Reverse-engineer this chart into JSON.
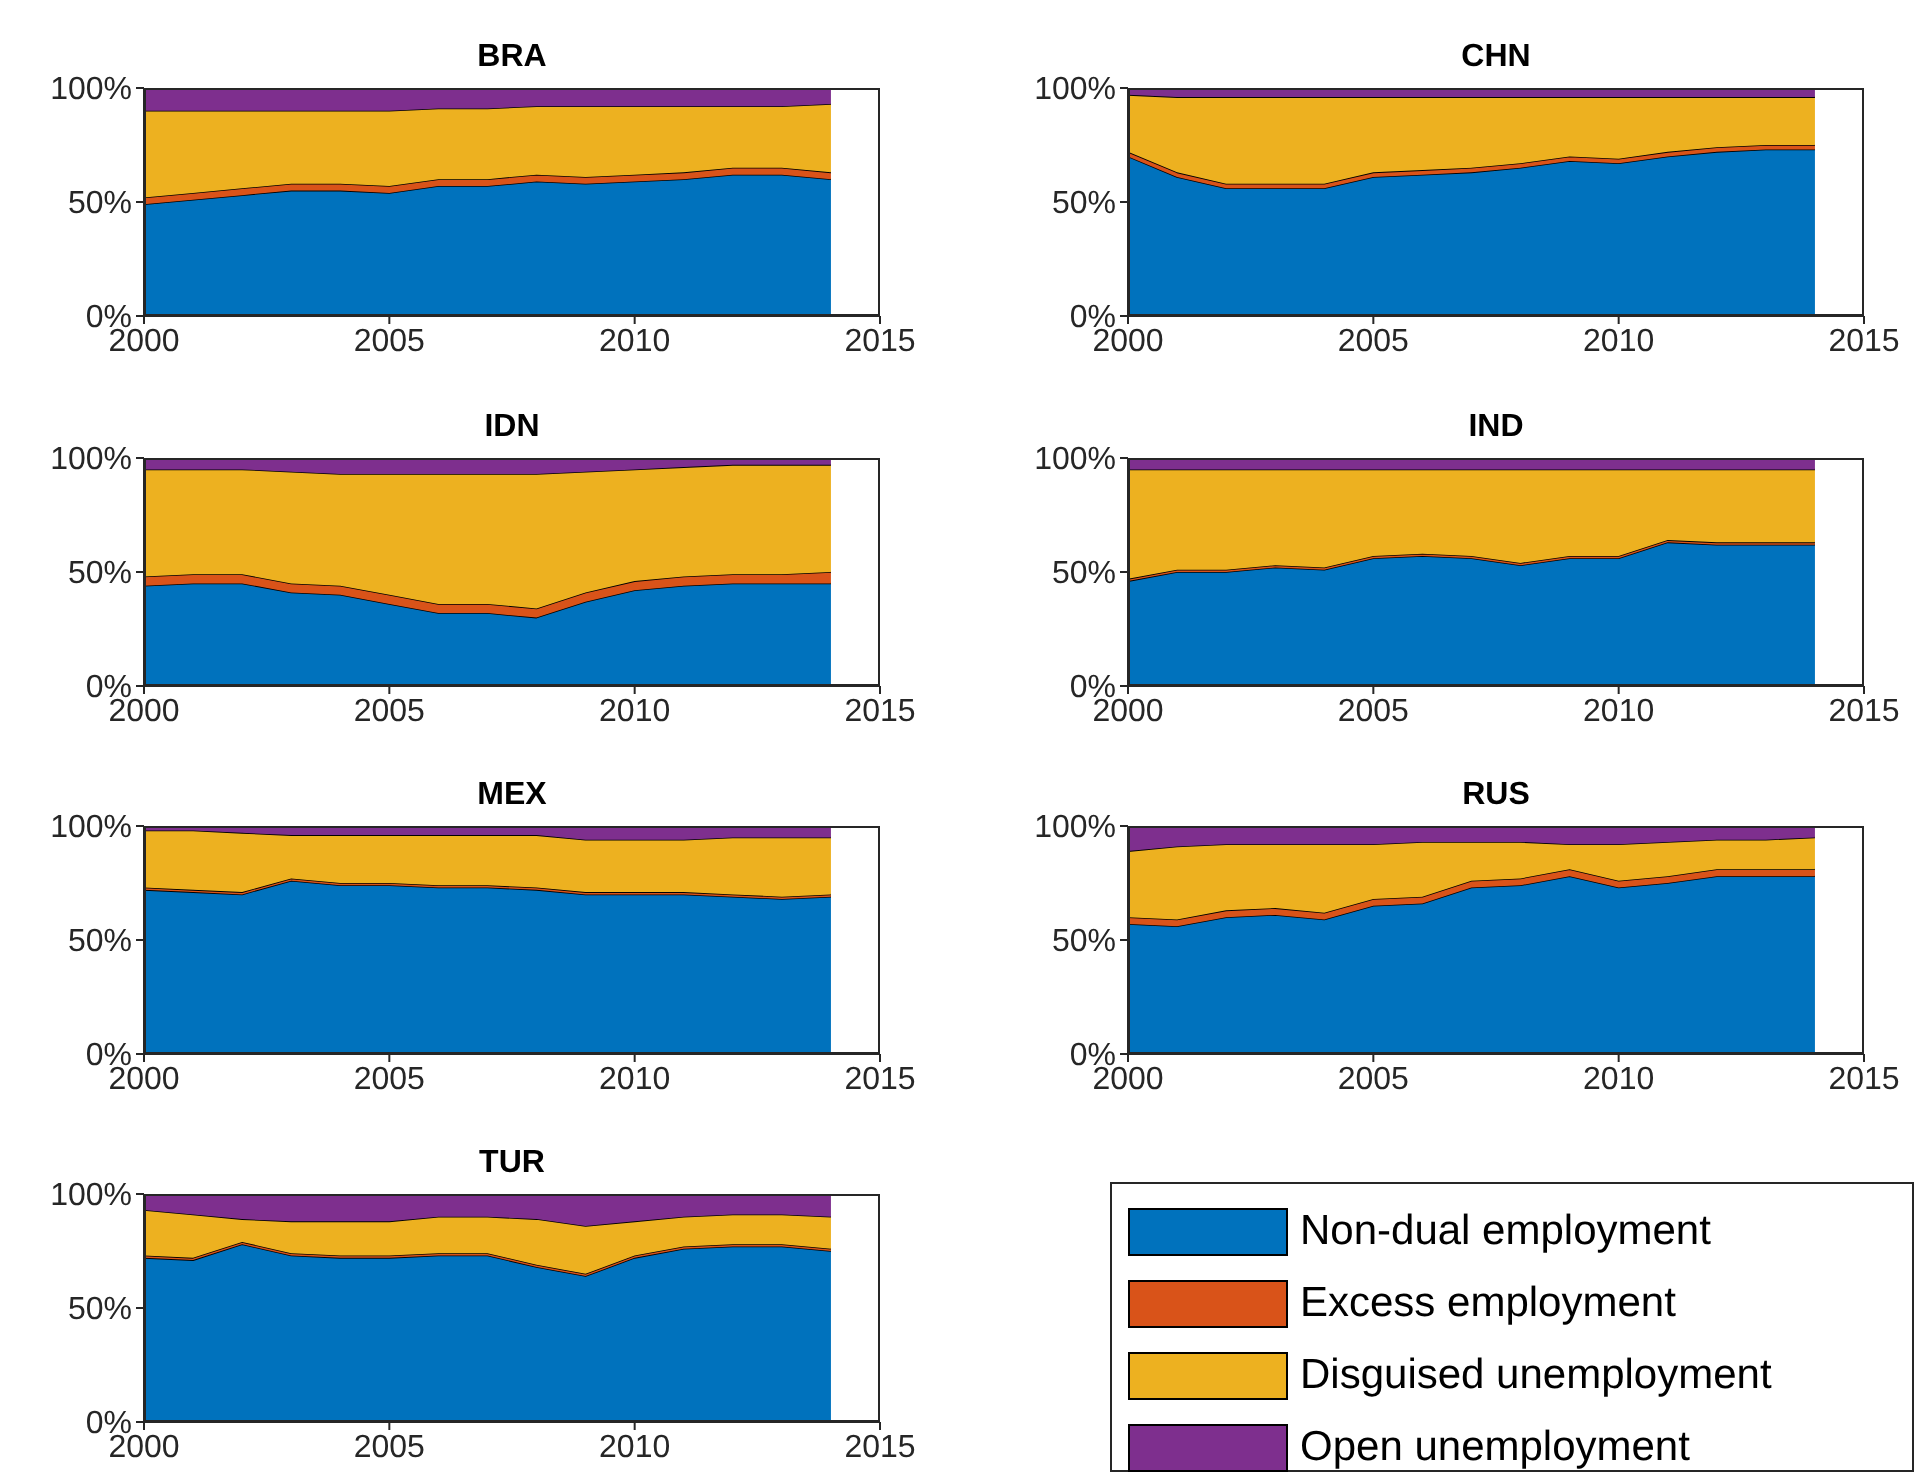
{
  "chart_data": [
    {
      "type": "area",
      "stacked": true,
      "title": "BRA",
      "x": [
        2000,
        2001,
        2002,
        2003,
        2004,
        2005,
        2006,
        2007,
        2008,
        2009,
        2010,
        2011,
        2012,
        2013,
        2014
      ],
      "xlim": [
        2000,
        2015
      ],
      "xticks": [
        2000,
        2005,
        2010,
        2015
      ],
      "ylim": [
        0,
        100
      ],
      "yticks": [
        {
          "value": 0,
          "label": "0%"
        },
        {
          "value": 50,
          "label": "50%"
        },
        {
          "value": 100,
          "label": "100%"
        }
      ],
      "series": [
        {
          "color": "#0072bd",
          "values": [
            49,
            51,
            53,
            55,
            55,
            54,
            57,
            57,
            59,
            58,
            59,
            60,
            62,
            62,
            60
          ]
        },
        {
          "color": "#d95319",
          "values": [
            3,
            3,
            3,
            3,
            3,
            3,
            3,
            3,
            3,
            3,
            3,
            3,
            3,
            3,
            3
          ]
        },
        {
          "color": "#edb120",
          "values": [
            38,
            36,
            34,
            32,
            32,
            33,
            31,
            31,
            30,
            31,
            30,
            29,
            27,
            27,
            30
          ]
        },
        {
          "color": "#7e2f8e",
          "values": [
            10,
            10,
            10,
            10,
            10,
            10,
            9,
            9,
            8,
            8,
            8,
            8,
            8,
            8,
            7
          ]
        }
      ]
    },
    {
      "type": "area",
      "stacked": true,
      "title": "CHN",
      "x": [
        2000,
        2001,
        2002,
        2003,
        2004,
        2005,
        2006,
        2007,
        2008,
        2009,
        2010,
        2011,
        2012,
        2013,
        2014
      ],
      "xlim": [
        2000,
        2015
      ],
      "xticks": [
        2000,
        2005,
        2010,
        2015
      ],
      "ylim": [
        0,
        100
      ],
      "yticks": [
        {
          "value": 0,
          "label": "0%"
        },
        {
          "value": 50,
          "label": "50%"
        },
        {
          "value": 100,
          "label": "100%"
        }
      ],
      "series": [
        {
          "color": "#0072bd",
          "values": [
            70,
            61,
            56,
            56,
            56,
            61,
            62,
            63,
            65,
            68,
            67,
            70,
            72,
            73,
            73
          ]
        },
        {
          "color": "#d95319",
          "values": [
            2,
            2,
            2,
            2,
            2,
            2,
            2,
            2,
            2,
            2,
            2,
            2,
            2,
            2,
            2
          ]
        },
        {
          "color": "#edb120",
          "values": [
            25,
            33,
            38,
            38,
            38,
            33,
            32,
            31,
            29,
            26,
            27,
            24,
            22,
            21,
            21
          ]
        },
        {
          "color": "#7e2f8e",
          "values": [
            3,
            4,
            4,
            4,
            4,
            4,
            4,
            4,
            4,
            4,
            4,
            4,
            4,
            4,
            4
          ]
        }
      ]
    },
    {
      "type": "area",
      "stacked": true,
      "title": "IDN",
      "x": [
        2000,
        2001,
        2002,
        2003,
        2004,
        2005,
        2006,
        2007,
        2008,
        2009,
        2010,
        2011,
        2012,
        2013,
        2014
      ],
      "xlim": [
        2000,
        2015
      ],
      "xticks": [
        2000,
        2005,
        2010,
        2015
      ],
      "ylim": [
        0,
        100
      ],
      "yticks": [
        {
          "value": 0,
          "label": "0%"
        },
        {
          "value": 50,
          "label": "50%"
        },
        {
          "value": 100,
          "label": "100%"
        }
      ],
      "series": [
        {
          "color": "#0072bd",
          "values": [
            44,
            45,
            45,
            41,
            40,
            36,
            32,
            32,
            30,
            37,
            42,
            44,
            45,
            45,
            45
          ]
        },
        {
          "color": "#d95319",
          "values": [
            4,
            4,
            4,
            4,
            4,
            4,
            4,
            4,
            4,
            4,
            4,
            4,
            4,
            4,
            5
          ]
        },
        {
          "color": "#edb120",
          "values": [
            47,
            46,
            46,
            49,
            49,
            53,
            57,
            57,
            59,
            53,
            49,
            48,
            48,
            48,
            47
          ]
        },
        {
          "color": "#7e2f8e",
          "values": [
            5,
            5,
            5,
            6,
            7,
            7,
            7,
            7,
            7,
            6,
            5,
            4,
            3,
            3,
            3
          ]
        }
      ]
    },
    {
      "type": "area",
      "stacked": true,
      "title": "IND",
      "x": [
        2000,
        2001,
        2002,
        2003,
        2004,
        2005,
        2006,
        2007,
        2008,
        2009,
        2010,
        2011,
        2012,
        2013,
        2014
      ],
      "xlim": [
        2000,
        2015
      ],
      "xticks": [
        2000,
        2005,
        2010,
        2015
      ],
      "ylim": [
        0,
        100
      ],
      "yticks": [
        {
          "value": 0,
          "label": "0%"
        },
        {
          "value": 50,
          "label": "50%"
        },
        {
          "value": 100,
          "label": "100%"
        }
      ],
      "series": [
        {
          "color": "#0072bd",
          "values": [
            46,
            50,
            50,
            52,
            51,
            56,
            57,
            56,
            53,
            56,
            56,
            63,
            62,
            62,
            62
          ]
        },
        {
          "color": "#d95319",
          "values": [
            1,
            1,
            1,
            1,
            1,
            1,
            1,
            1,
            1,
            1,
            1,
            1,
            1,
            1,
            1
          ]
        },
        {
          "color": "#edb120",
          "values": [
            48,
            44,
            44,
            42,
            43,
            38,
            37,
            38,
            41,
            38,
            38,
            31,
            32,
            32,
            32
          ]
        },
        {
          "color": "#7e2f8e",
          "values": [
            5,
            5,
            5,
            5,
            5,
            5,
            5,
            5,
            5,
            5,
            5,
            5,
            5,
            5,
            5
          ]
        }
      ]
    },
    {
      "type": "area",
      "stacked": true,
      "title": "MEX",
      "x": [
        2000,
        2001,
        2002,
        2003,
        2004,
        2005,
        2006,
        2007,
        2008,
        2009,
        2010,
        2011,
        2012,
        2013,
        2014
      ],
      "xlim": [
        2000,
        2015
      ],
      "xticks": [
        2000,
        2005,
        2010,
        2015
      ],
      "ylim": [
        0,
        100
      ],
      "yticks": [
        {
          "value": 0,
          "label": "0%"
        },
        {
          "value": 50,
          "label": "50%"
        },
        {
          "value": 100,
          "label": "100%"
        }
      ],
      "series": [
        {
          "color": "#0072bd",
          "values": [
            72,
            71,
            70,
            76,
            74,
            74,
            73,
            73,
            72,
            70,
            70,
            70,
            69,
            68,
            69
          ]
        },
        {
          "color": "#d95319",
          "values": [
            1,
            1,
            1,
            1,
            1,
            1,
            1,
            1,
            1,
            1,
            1,
            1,
            1,
            1,
            1
          ]
        },
        {
          "color": "#edb120",
          "values": [
            25,
            26,
            26,
            19,
            21,
            21,
            22,
            22,
            23,
            23,
            23,
            23,
            25,
            26,
            25
          ]
        },
        {
          "color": "#7e2f8e",
          "values": [
            2,
            2,
            3,
            4,
            4,
            4,
            4,
            4,
            4,
            6,
            6,
            6,
            5,
            5,
            5
          ]
        }
      ]
    },
    {
      "type": "area",
      "stacked": true,
      "title": "RUS",
      "x": [
        2000,
        2001,
        2002,
        2003,
        2004,
        2005,
        2006,
        2007,
        2008,
        2009,
        2010,
        2011,
        2012,
        2013,
        2014
      ],
      "xlim": [
        2000,
        2015
      ],
      "xticks": [
        2000,
        2005,
        2010,
        2015
      ],
      "ylim": [
        0,
        100
      ],
      "yticks": [
        {
          "value": 0,
          "label": "0%"
        },
        {
          "value": 50,
          "label": "50%"
        },
        {
          "value": 100,
          "label": "100%"
        }
      ],
      "series": [
        {
          "color": "#0072bd",
          "values": [
            57,
            56,
            60,
            61,
            59,
            65,
            66,
            73,
            74,
            78,
            73,
            75,
            78,
            78,
            78
          ]
        },
        {
          "color": "#d95319",
          "values": [
            3,
            3,
            3,
            3,
            3,
            3,
            3,
            3,
            3,
            3,
            3,
            3,
            3,
            3,
            3
          ]
        },
        {
          "color": "#edb120",
          "values": [
            29,
            32,
            29,
            28,
            30,
            24,
            24,
            17,
            16,
            11,
            16,
            15,
            13,
            13,
            14
          ]
        },
        {
          "color": "#7e2f8e",
          "values": [
            11,
            9,
            8,
            8,
            8,
            8,
            7,
            7,
            7,
            8,
            8,
            7,
            6,
            6,
            5
          ]
        }
      ]
    },
    {
      "type": "area",
      "stacked": true,
      "title": "TUR",
      "x": [
        2000,
        2001,
        2002,
        2003,
        2004,
        2005,
        2006,
        2007,
        2008,
        2009,
        2010,
        2011,
        2012,
        2013,
        2014
      ],
      "xlim": [
        2000,
        2015
      ],
      "xticks": [
        2000,
        2005,
        2010,
        2015
      ],
      "ylim": [
        0,
        100
      ],
      "yticks": [
        {
          "value": 0,
          "label": "0%"
        },
        {
          "value": 50,
          "label": "50%"
        },
        {
          "value": 100,
          "label": "100%"
        }
      ],
      "legend": "right",
      "series": [
        {
          "name": "Non-dual employment",
          "color": "#0072bd",
          "values": [
            72,
            71,
            78,
            73,
            72,
            72,
            73,
            73,
            68,
            64,
            72,
            76,
            77,
            77,
            75
          ]
        },
        {
          "name": "Excess employment",
          "color": "#d95319",
          "values": [
            1,
            1,
            1,
            1,
            1,
            1,
            1,
            1,
            1,
            1,
            1,
            1,
            1,
            1,
            1
          ]
        },
        {
          "name": "Disguised unemployment",
          "color": "#edb120",
          "values": [
            20,
            19,
            10,
            14,
            15,
            15,
            16,
            16,
            20,
            21,
            15,
            13,
            13,
            13,
            14
          ]
        },
        {
          "name": "Open unemployment",
          "color": "#7e2f8e",
          "values": [
            7,
            9,
            11,
            12,
            12,
            12,
            10,
            10,
            11,
            14,
            12,
            10,
            9,
            9,
            10
          ]
        }
      ]
    }
  ]
}
